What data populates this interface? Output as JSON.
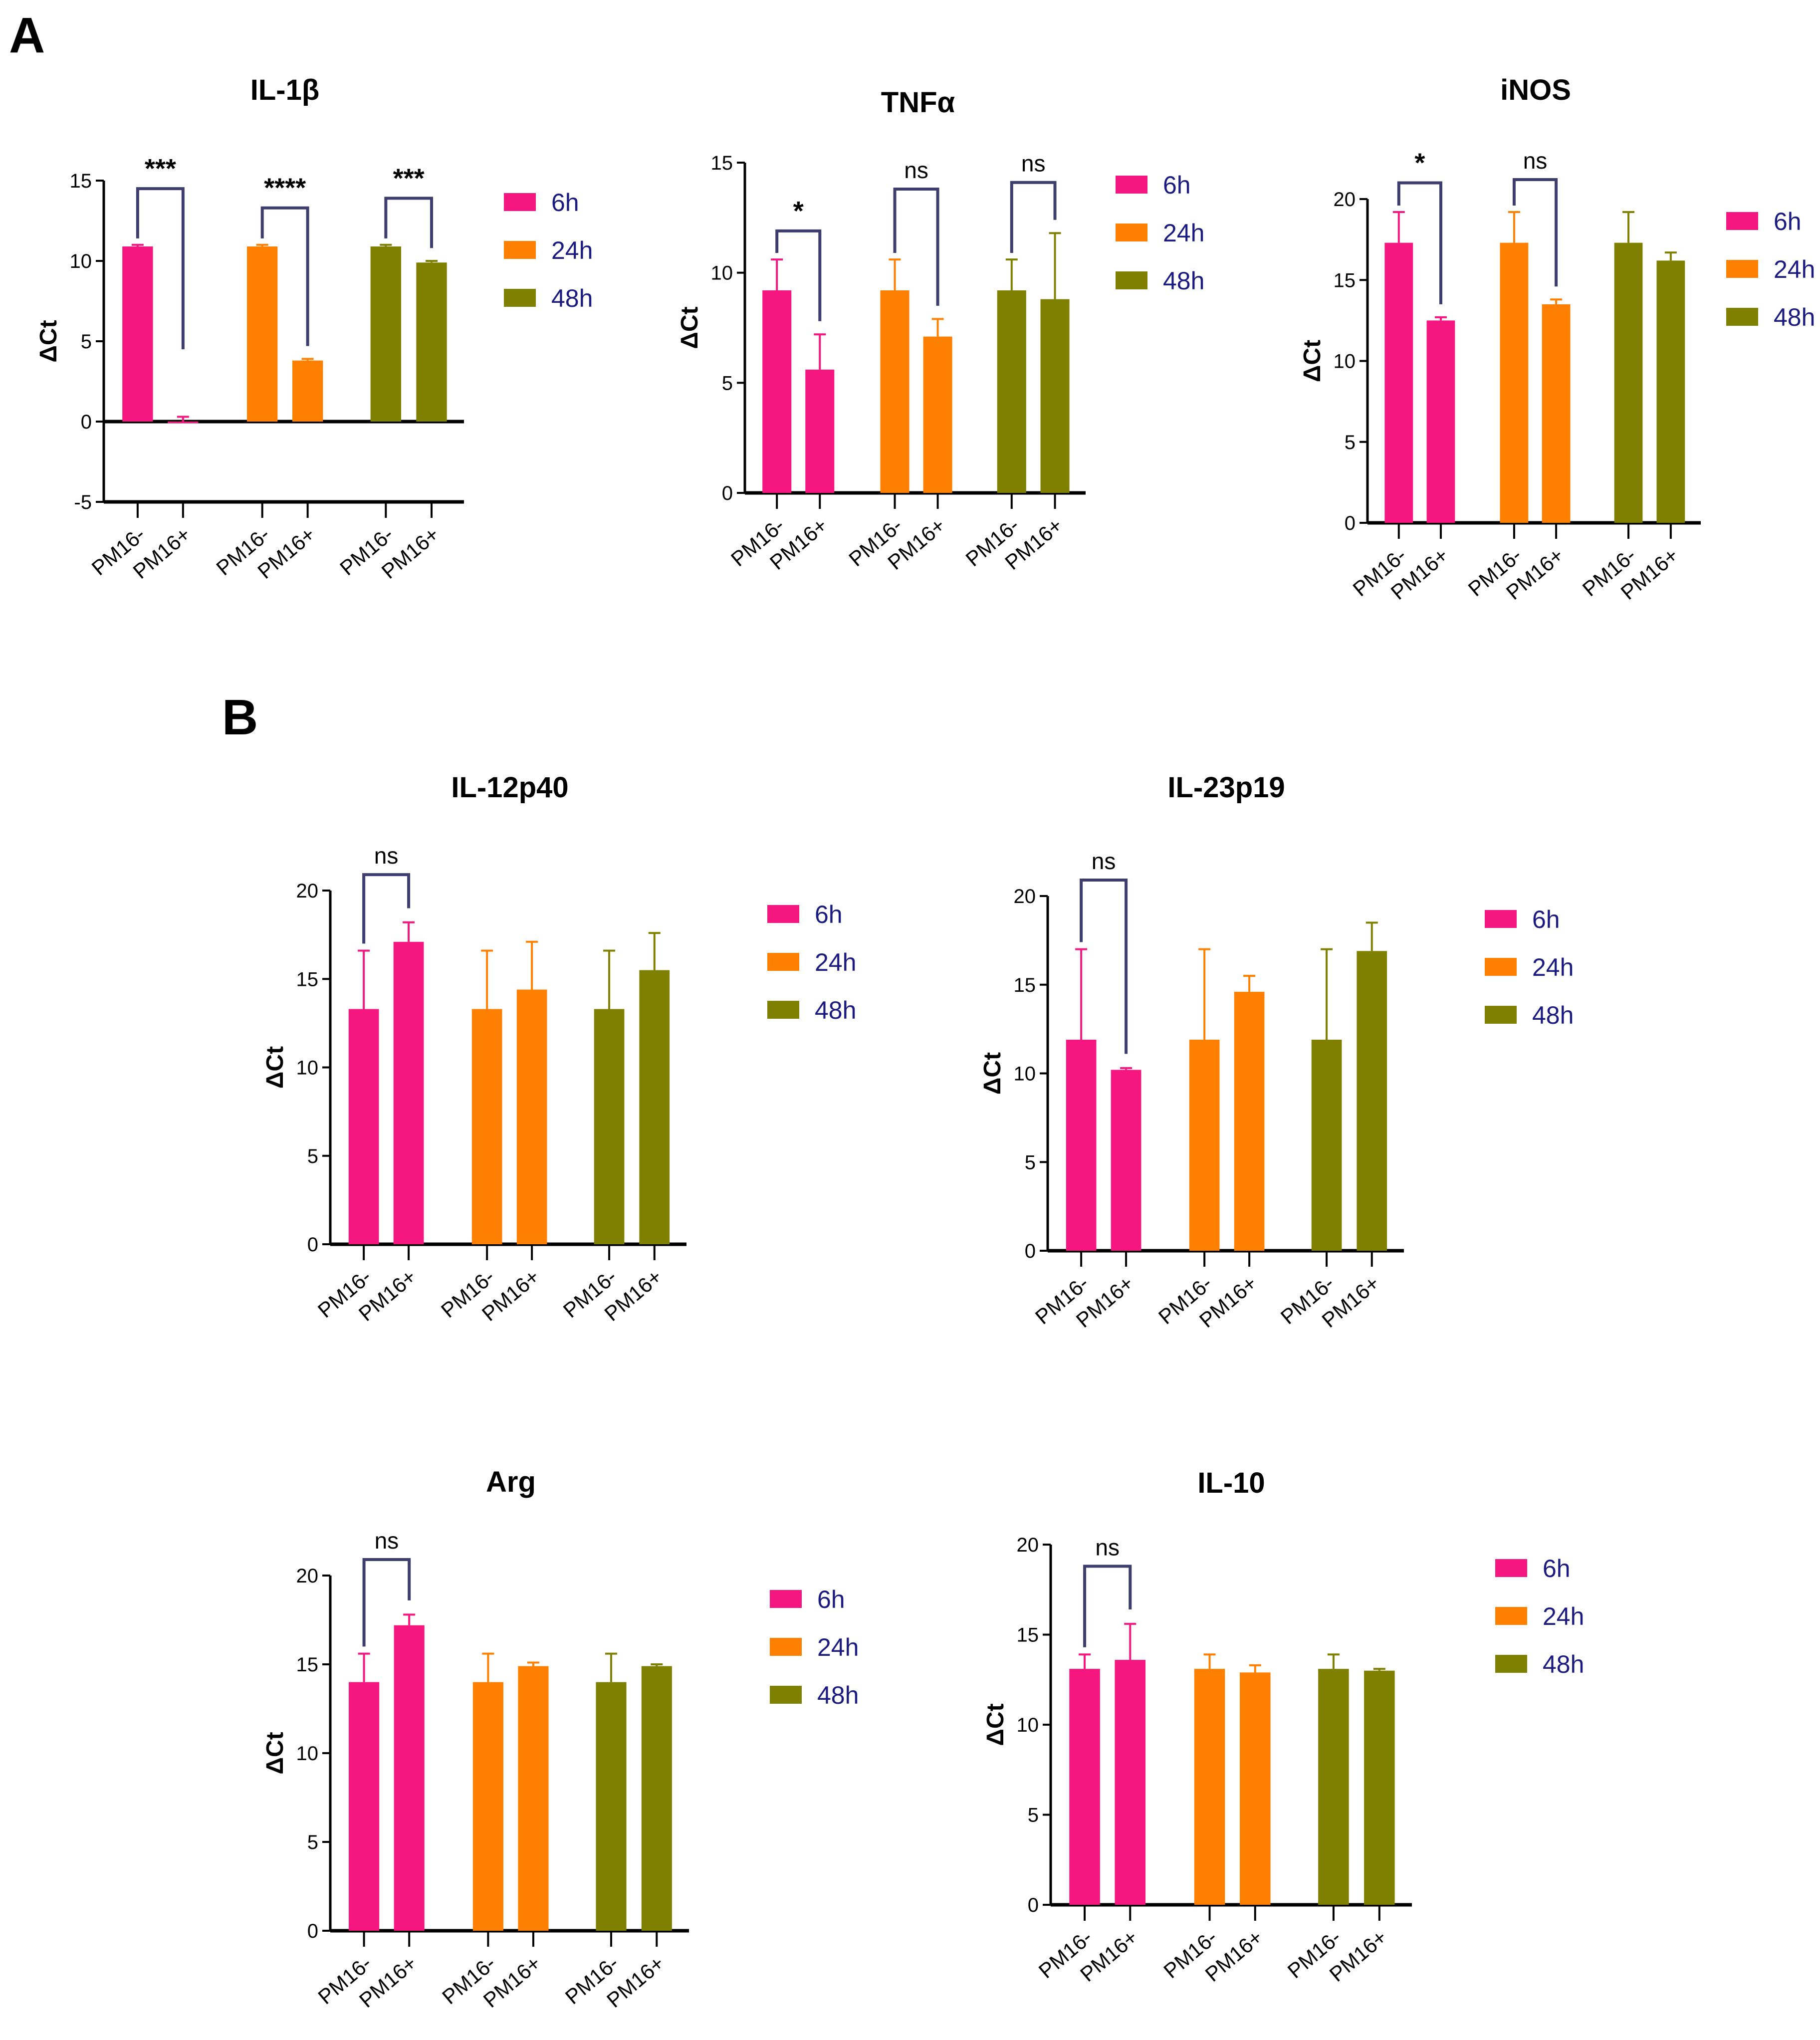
{
  "panels": [
    "A",
    "B"
  ],
  "colors": {
    "6h": "#F5177F",
    "24h": "#FF8000",
    "48h": "#808000",
    "bracket": "#3d3d6e",
    "legend_text": "#1a1a80"
  },
  "chart_data": [
    {
      "type": "bar",
      "title": "IL-1β",
      "ylabel": "ΔCt",
      "ylim": [
        -5,
        15
      ],
      "yticks": [
        -5,
        0,
        5,
        10,
        15
      ],
      "categories": [
        "PM16-",
        "PM16+"
      ],
      "legend": [
        "6h",
        "24h",
        "48h"
      ],
      "legend_position": "right",
      "series": [
        {
          "name": "6h",
          "values": [
            10.9,
            -0.1
          ],
          "errors": [
            0.1,
            0.4
          ]
        },
        {
          "name": "24h",
          "values": [
            10.9,
            3.8
          ],
          "errors": [
            0.1,
            0.1
          ]
        },
        {
          "name": "48h",
          "values": [
            10.9,
            9.9
          ],
          "errors": [
            0.1,
            0.1
          ]
        }
      ],
      "significance": [
        {
          "group": "6h",
          "label": "***",
          "y": 14.5
        },
        {
          "group": "24h",
          "label": "****",
          "y": 13.3
        },
        {
          "group": "48h",
          "label": "***",
          "y": 13.9
        }
      ]
    },
    {
      "type": "bar",
      "title": "TNFα",
      "ylabel": "ΔCt",
      "ylim": [
        0,
        15
      ],
      "yticks": [
        0,
        5,
        10,
        15
      ],
      "categories": [
        "PM16-",
        "PM16+"
      ],
      "legend": [
        "6h",
        "24h",
        "48h"
      ],
      "legend_position": "right",
      "series": [
        {
          "name": "6h",
          "values": [
            9.2,
            5.6
          ],
          "errors": [
            1.4,
            1.6
          ]
        },
        {
          "name": "24h",
          "values": [
            9.2,
            7.1
          ],
          "errors": [
            1.4,
            0.8
          ]
        },
        {
          "name": "48h",
          "values": [
            9.2,
            8.8
          ],
          "errors": [
            1.4,
            3.0
          ]
        }
      ],
      "significance": [
        {
          "group": "6h",
          "label": "*",
          "y": 11.9
        },
        {
          "group": "24h",
          "label": "ns",
          "y": 13.8
        },
        {
          "group": "48h",
          "label": "ns",
          "y": 14.1
        }
      ]
    },
    {
      "type": "bar",
      "title": "iNOS",
      "ylabel": "ΔCt",
      "ylim": [
        0,
        20
      ],
      "yticks": [
        0,
        5,
        10,
        15,
        20
      ],
      "categories": [
        "PM16-",
        "PM16+"
      ],
      "legend": [
        "6h",
        "24h",
        "48h"
      ],
      "legend_position": "right",
      "series": [
        {
          "name": "6h",
          "values": [
            17.3,
            12.5
          ],
          "errors": [
            1.9,
            0.2
          ]
        },
        {
          "name": "24h",
          "values": [
            17.3,
            13.5
          ],
          "errors": [
            1.9,
            0.3
          ]
        },
        {
          "name": "48h",
          "values": [
            17.3,
            16.2
          ],
          "errors": [
            1.9,
            0.5
          ]
        }
      ],
      "significance": [
        {
          "group": "6h",
          "label": "*",
          "y": 21.0
        },
        {
          "group": "24h",
          "label": "ns",
          "y": 21.2
        }
      ]
    },
    {
      "type": "bar",
      "title": "IL-12p40",
      "ylabel": "ΔCt",
      "ylim": [
        0,
        20
      ],
      "yticks": [
        0,
        5,
        10,
        15,
        20
      ],
      "categories": [
        "PM16-",
        "PM16+"
      ],
      "legend": [
        "6h",
        "24h",
        "48h"
      ],
      "legend_position": "right",
      "series": [
        {
          "name": "6h",
          "values": [
            13.3,
            17.1
          ],
          "errors": [
            3.3,
            1.1
          ]
        },
        {
          "name": "24h",
          "values": [
            13.3,
            14.4
          ],
          "errors": [
            3.3,
            2.7
          ]
        },
        {
          "name": "48h",
          "values": [
            13.3,
            15.5
          ],
          "errors": [
            3.3,
            2.1
          ]
        }
      ],
      "significance": [
        {
          "group": "6h",
          "label": "ns",
          "y": 20.9
        }
      ]
    },
    {
      "type": "bar",
      "title": "IL-23p19",
      "ylabel": "ΔCt",
      "ylim": [
        0,
        20
      ],
      "yticks": [
        0,
        5,
        10,
        15,
        20
      ],
      "categories": [
        "PM16-",
        "PM16+"
      ],
      "legend": [
        "6h",
        "24h",
        "48h"
      ],
      "legend_position": "right",
      "series": [
        {
          "name": "6h",
          "values": [
            11.9,
            10.2
          ],
          "errors": [
            5.1,
            0.1
          ]
        },
        {
          "name": "24h",
          "values": [
            11.9,
            14.6
          ],
          "errors": [
            5.1,
            0.9
          ]
        },
        {
          "name": "48h",
          "values": [
            11.9,
            16.9
          ],
          "errors": [
            5.1,
            1.6
          ]
        }
      ],
      "significance": [
        {
          "group": "6h",
          "label": "ns",
          "y": 20.9
        }
      ]
    },
    {
      "type": "bar",
      "title": "Arg",
      "ylabel": "ΔCt",
      "ylim": [
        0,
        20
      ],
      "yticks": [
        0,
        5,
        10,
        15,
        20
      ],
      "categories": [
        "PM16-",
        "PM16+"
      ],
      "legend": [
        "6h",
        "24h",
        "48h"
      ],
      "legend_position": "right",
      "series": [
        {
          "name": "6h",
          "values": [
            14.0,
            17.2
          ],
          "errors": [
            1.6,
            0.6
          ]
        },
        {
          "name": "24h",
          "values": [
            14.0,
            14.9
          ],
          "errors": [
            1.6,
            0.2
          ]
        },
        {
          "name": "48h",
          "values": [
            14.0,
            14.9
          ],
          "errors": [
            1.6,
            0.1
          ]
        }
      ],
      "significance": [
        {
          "group": "6h",
          "label": "ns",
          "y": 20.9
        }
      ]
    },
    {
      "type": "bar",
      "title": "IL-10",
      "ylabel": "ΔCt",
      "ylim": [
        0,
        20
      ],
      "yticks": [
        0,
        5,
        10,
        15,
        20
      ],
      "categories": [
        "PM16-",
        "PM16+"
      ],
      "legend": [
        "6h",
        "24h",
        "48h"
      ],
      "legend_position": "right",
      "series": [
        {
          "name": "6h",
          "values": [
            13.1,
            13.6
          ],
          "errors": [
            0.8,
            2.0
          ]
        },
        {
          "name": "24h",
          "values": [
            13.1,
            12.9
          ],
          "errors": [
            0.8,
            0.4
          ]
        },
        {
          "name": "48h",
          "values": [
            13.1,
            13.0
          ],
          "errors": [
            0.8,
            0.1
          ]
        }
      ],
      "significance": [
        {
          "group": "6h",
          "label": "ns",
          "y": 18.8
        }
      ]
    }
  ]
}
